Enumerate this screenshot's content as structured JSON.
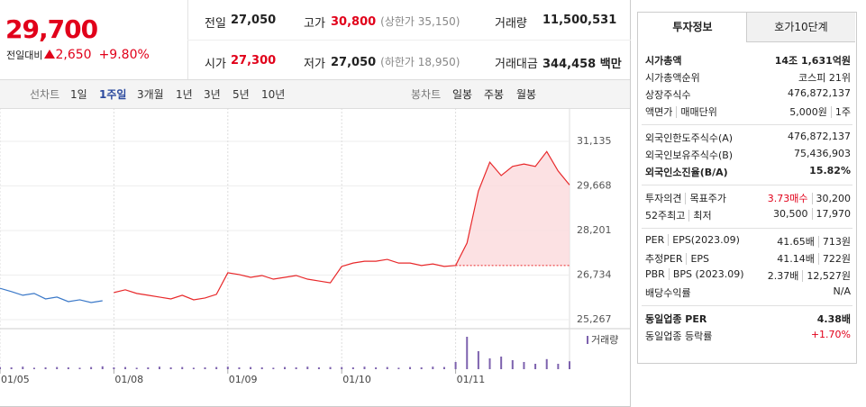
{
  "price": {
    "current": "29,700",
    "change_label": "전일대비",
    "change": "2,650",
    "change_pct": "+9.80%",
    "color": "#e1001a"
  },
  "summary": [
    {
      "label": "전일",
      "value": "27,050"
    },
    {
      "label": "고가",
      "value": "30,800",
      "note": "(상한가 35,150)",
      "color": "#e1001a"
    },
    {
      "label": "거래량",
      "value": "11,500,531"
    },
    {
      "label": "시가",
      "value": "27,300",
      "color": "#e1001a"
    },
    {
      "label": "저가",
      "value": "27,050",
      "note": "(하한가 18,950)"
    },
    {
      "label": "거래대금",
      "value": "344,458 백만"
    }
  ],
  "period_tabs": {
    "label": "선차트",
    "items": [
      "1일",
      "1주일",
      "3개월",
      "1년",
      "3년",
      "5년",
      "10년"
    ],
    "active": 1
  },
  "candle_tabs": {
    "label": "봉차트",
    "items": [
      "일봉",
      "주봉",
      "월봉"
    ]
  },
  "chart": {
    "type": "line",
    "categories": [
      "01/05",
      null,
      null,
      null,
      null,
      null,
      null,
      null,
      null,
      null,
      "01/08",
      null,
      null,
      null,
      null,
      null,
      null,
      null,
      null,
      null,
      "01/09",
      null,
      null,
      null,
      null,
      null,
      null,
      null,
      null,
      null,
      "01/10",
      null,
      null,
      null,
      null,
      null,
      null,
      null,
      null,
      null,
      "01/11",
      null,
      null,
      null,
      null,
      null,
      null,
      null,
      null,
      null,
      null
    ],
    "series": [
      {
        "color": "#3a78c8",
        "values": [
          26300,
          26190,
          26070,
          26130,
          25950,
          26010,
          25860,
          25920,
          25830,
          25890,
          null,
          null,
          null,
          null,
          null,
          null,
          null,
          null,
          null,
          null,
          null,
          null,
          null,
          null,
          null,
          null,
          null,
          null,
          null,
          null,
          null,
          null,
          null,
          null,
          null,
          null,
          null,
          null,
          null,
          null,
          null,
          null,
          null,
          null,
          null,
          null,
          null,
          null,
          null,
          null,
          null
        ]
      },
      {
        "color": "#e8282a",
        "values": [
          null,
          null,
          null,
          null,
          null,
          null,
          null,
          null,
          null,
          null,
          26160,
          26250,
          26130,
          26070,
          26010,
          25950,
          26070,
          25920,
          25980,
          26100,
          26810,
          26750,
          26660,
          26720,
          26600,
          26660,
          26720,
          26600,
          26540,
          26480,
          27020,
          27130,
          27190,
          27190,
          27250,
          27130,
          27130,
          27050,
          27100,
          27020,
          27050,
          27790,
          29500,
          30450,
          30010,
          30310,
          30390,
          30310,
          30800,
          30160,
          29700
        ]
      }
    ],
    "ylim": [
      25267,
      31135
    ],
    "yticks": [
      {
        "value": 25267,
        "label": "25,267"
      },
      {
        "value": 26734,
        "label": "26,734"
      },
      {
        "value": 28201,
        "label": "28,201"
      },
      {
        "value": 29668,
        "label": "29,668"
      },
      {
        "value": 31135,
        "label": "31,135"
      }
    ],
    "volume": {
      "name": "거래량",
      "color": "#7d62ae",
      "ylim": [
        0,
        100
      ],
      "values": [
        6,
        5,
        7,
        4,
        5,
        6,
        5,
        4,
        6,
        8,
        5,
        6,
        4,
        5,
        7,
        5,
        6,
        4,
        5,
        6,
        7,
        5,
        6,
        5,
        4,
        6,
        5,
        7,
        5,
        6,
        6,
        5,
        7,
        5,
        6,
        4,
        6,
        5,
        7,
        6,
        20,
        90,
        50,
        30,
        35,
        25,
        20,
        15,
        28,
        15,
        22
      ]
    }
  },
  "info_tabs": {
    "items": [
      "투자정보",
      "호가10단계"
    ],
    "active": 0
  },
  "info": [
    [
      {
        "label": [
          "시가총액"
        ],
        "value": [
          "14조 1,631억원"
        ],
        "bold": true
      },
      {
        "label": [
          "시가총액순위"
        ],
        "value": [
          "코스피 21위"
        ]
      },
      {
        "label": [
          "상장주식수"
        ],
        "value": [
          "476,872,137"
        ]
      },
      {
        "label": [
          "액면가",
          "매매단위"
        ],
        "value": [
          "5,000원",
          "1주"
        ]
      }
    ],
    [
      {
        "label": [
          "외국인한도주식수(A)"
        ],
        "value": [
          "476,872,137"
        ]
      },
      {
        "label": [
          "외국인보유주식수(B)"
        ],
        "value": [
          "75,436,903"
        ]
      },
      {
        "label": [
          "외국인소진율(B/A)"
        ],
        "value": [
          "15.82%"
        ],
        "bold": true
      }
    ],
    [
      {
        "label": [
          "투자의견",
          "목표주가"
        ],
        "value": [
          "3.73매수",
          "30,200"
        ],
        "value_colors": [
          "#e1001a",
          null
        ]
      },
      {
        "label": [
          "52주최고",
          "최저"
        ],
        "value": [
          "30,500",
          "17,970"
        ]
      }
    ],
    [
      {
        "label": [
          "PER",
          "EPS(2023.09)"
        ],
        "value": [
          "41.65배",
          "713원"
        ]
      },
      {
        "label": [
          "추정PER",
          "EPS"
        ],
        "value": [
          "41.14배",
          "722원"
        ]
      },
      {
        "label": [
          "PBR",
          "BPS (2023.09)"
        ],
        "value": [
          "2.37배",
          "12,527원"
        ]
      },
      {
        "label": [
          "배당수익률"
        ],
        "value": [
          "N/A"
        ]
      }
    ],
    [
      {
        "label": [
          "동일업종 PER"
        ],
        "value": [
          "4.38배"
        ],
        "bold": true
      },
      {
        "label": [
          "동일업종 등락률"
        ],
        "value": [
          "+1.70%"
        ],
        "value_colors": [
          "#e1001a"
        ]
      }
    ]
  ]
}
